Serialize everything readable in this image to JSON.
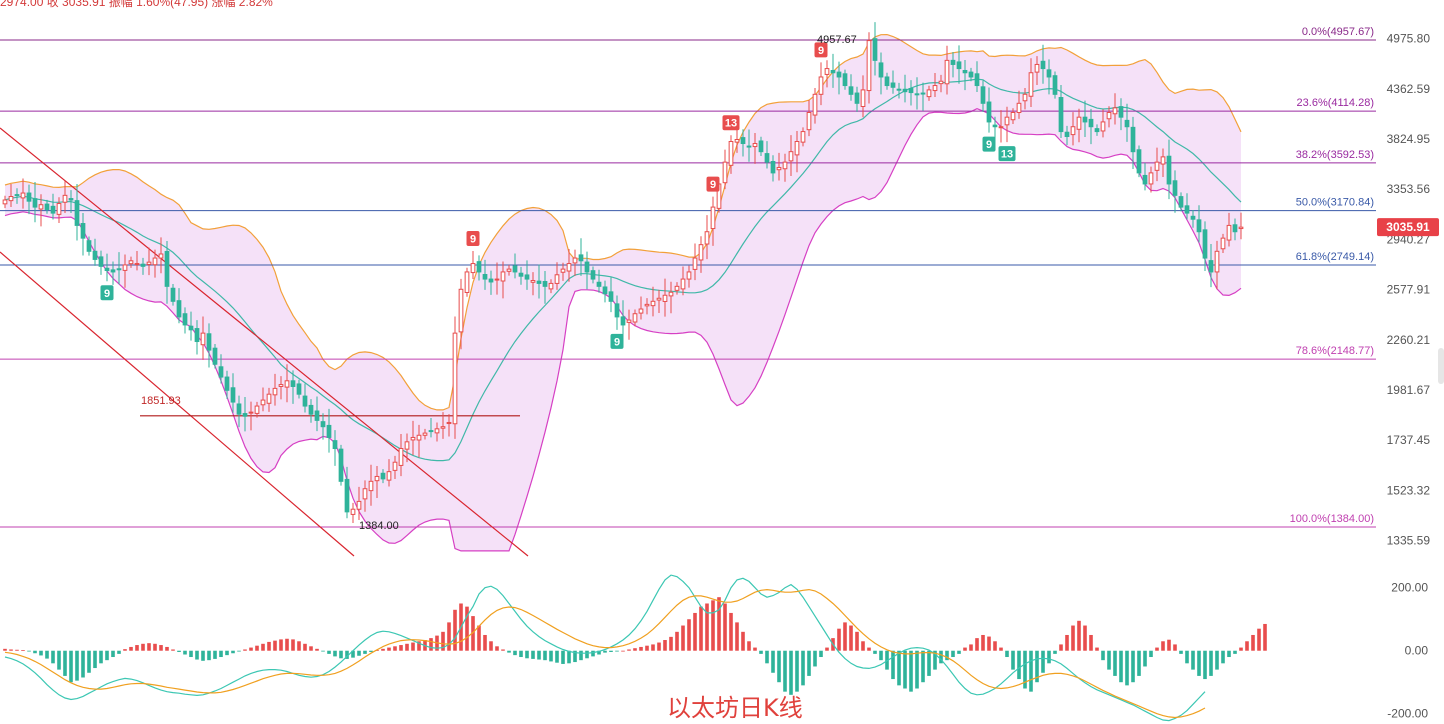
{
  "top_info": "2974.00  收 3035.91  振幅 1.60%(47.95)  涨幅 2.82%",
  "caption": "以太坊日K线",
  "colors": {
    "up": "#e84d4d",
    "down": "#2fb39a",
    "band_fill": "#f3dcf7",
    "upper_band": "#f2a03a",
    "lower_band": "#d640c4",
    "middle_band": "#40b8a8",
    "dif": "#3cc7b3",
    "dea": "#f0a020",
    "channel": "#d9252f",
    "price_tag": "#e84148"
  },
  "chart_data": [
    {
      "type": "candlestick",
      "ylim": [
        1300,
        5100
      ],
      "y_ticks": [
        "4975.80",
        "4362.59",
        "3824.95",
        "3353.56",
        "2940.27",
        "2577.91",
        "2260.21",
        "1981.67",
        "1737.45",
        "1523.32",
        "1335.59"
      ],
      "last_price": "3035.91",
      "fib_levels": [
        {
          "label": "0.0%(4957.67)",
          "value": 4957.67,
          "color": "#8a2a8a"
        },
        {
          "label": "23.6%(4114.28)",
          "value": 4114.28,
          "color": "#9a2aa0"
        },
        {
          "label": "38.2%(3592.53)",
          "value": 3592.53,
          "color": "#9a2aa0"
        },
        {
          "label": "50.0%(3170.84)",
          "value": 3170.84,
          "color": "#3a5aa8"
        },
        {
          "label": "61.8%(2749.14)",
          "value": 2749.14,
          "color": "#3a5aa8"
        },
        {
          "label": "78.6%(2148.77)",
          "value": 2148.77,
          "color": "#c040b0"
        },
        {
          "label": "100.0%(1384.00)",
          "value": 1384.0,
          "color": "#c040b0"
        }
      ],
      "annotations": {
        "high": "4957.67",
        "low": "1384.00",
        "support": "1851.93"
      },
      "count_markers": [
        {
          "text": "9",
          "kind": "down",
          "i": 17
        },
        {
          "text": "9",
          "kind": "up",
          "i": 78
        },
        {
          "text": "9",
          "kind": "down",
          "i": 102
        },
        {
          "text": "9",
          "kind": "up",
          "i": 118
        },
        {
          "text": "13",
          "kind": "up",
          "i": 121
        },
        {
          "text": "9",
          "kind": "up",
          "i": 136
        },
        {
          "text": "9",
          "kind": "down",
          "i": 164
        },
        {
          "text": "13",
          "kind": "down",
          "i": 167
        }
      ],
      "closes": [
        3260,
        3290,
        3300,
        3320,
        3250,
        3200,
        3220,
        3180,
        3150,
        3230,
        3300,
        3260,
        3050,
        2950,
        2850,
        2790,
        2740,
        2710,
        2700,
        2720,
        2750,
        2780,
        2760,
        2740,
        2770,
        2800,
        2830,
        2600,
        2500,
        2400,
        2350,
        2320,
        2250,
        2300,
        2200,
        2120,
        2050,
        1980,
        1920,
        1860,
        1850,
        1870,
        1900,
        1930,
        1960,
        1990,
        2010,
        2030,
        2000,
        1960,
        1900,
        1860,
        1830,
        1800,
        1750,
        1700,
        1560,
        1440,
        1450,
        1480,
        1530,
        1560,
        1580,
        1570,
        1600,
        1640,
        1700,
        1730,
        1750,
        1760,
        1770,
        1780,
        1790,
        1800,
        1820,
        2300,
        2580,
        2700,
        2760,
        2700,
        2650,
        2630,
        2650,
        2700,
        2720,
        2700,
        2670,
        2650,
        2640,
        2620,
        2600,
        2620,
        2680,
        2720,
        2760,
        2800,
        2780,
        2700,
        2650,
        2600,
        2550,
        2500,
        2400,
        2350,
        2380,
        2420,
        2450,
        2480,
        2500,
        2520,
        2540,
        2560,
        2600,
        2650,
        2700,
        2800,
        2900,
        3000,
        3200,
        3400,
        3600,
        3800,
        3820,
        3780,
        3750,
        3780,
        3700,
        3600,
        3500,
        3550,
        3600,
        3700,
        3800,
        3900,
        4100,
        4300,
        4500,
        4600,
        4550,
        4500,
        4400,
        4300,
        4200,
        4350,
        4950,
        4700,
        4500,
        4400,
        4380,
        4350,
        4330,
        4320,
        4300,
        4310,
        4350,
        4400,
        4450,
        4700,
        4650,
        4600,
        4550,
        4500,
        4400,
        4200,
        4000,
        3950,
        3950,
        4050,
        4100,
        4200,
        4300,
        4550,
        4650,
        4600,
        4500,
        4300,
        3900,
        3850,
        3950,
        4050,
        4000,
        3950,
        3900,
        4000,
        4100,
        4150,
        4050,
        3950,
        3700,
        3500,
        3400,
        3500,
        3600,
        3650,
        3400,
        3300,
        3200,
        3150,
        3100,
        3000,
        2800,
        2700,
        2850,
        2950,
        3050,
        3000,
        3036
      ]
    },
    {
      "type": "bar",
      "ylim": [
        -220,
        250
      ],
      "y_ticks": [
        "200.00",
        "0.00",
        "-200.00"
      ],
      "histogram": [
        6,
        4,
        3,
        2,
        -2,
        -8,
        -15,
        -25,
        -40,
        -60,
        -80,
        -100,
        -95,
        -85,
        -70,
        -55,
        -40,
        -30,
        -20,
        -10,
        5,
        12,
        18,
        22,
        24,
        22,
        18,
        12,
        4,
        -4,
        -12,
        -20,
        -28,
        -32,
        -30,
        -26,
        -20,
        -14,
        -8,
        -2,
        4,
        10,
        16,
        22,
        28,
        32,
        36,
        38,
        36,
        30,
        22,
        14,
        6,
        -2,
        -10,
        -18,
        -24,
        -26,
        -22,
        -16,
        -10,
        -4,
        2,
        6,
        10,
        14,
        18,
        22,
        26,
        30,
        34,
        40,
        48,
        60,
        90,
        130,
        150,
        140,
        110,
        80,
        50,
        30,
        14,
        4,
        -6,
        -14,
        -20,
        -24,
        -26,
        -28,
        -30,
        -34,
        -38,
        -42,
        -40,
        -36,
        -30,
        -24,
        -18,
        -12,
        -6,
        -4,
        -2,
        0,
        4,
        8,
        12,
        16,
        20,
        26,
        34,
        44,
        60,
        80,
        100,
        120,
        140,
        150,
        160,
        170,
        150,
        120,
        90,
        60,
        30,
        10,
        -10,
        -40,
        -70,
        -100,
        -130,
        -140,
        -130,
        -110,
        -80,
        -50,
        -20,
        10,
        40,
        70,
        90,
        80,
        60,
        30,
        10,
        -10,
        -30,
        -60,
        -90,
        -110,
        -120,
        -130,
        -120,
        -100,
        -80,
        -60,
        -40,
        -30,
        -20,
        -10,
        10,
        20,
        40,
        50,
        45,
        30,
        10,
        -20,
        -60,
        -90,
        -120,
        -130,
        -100,
        -70,
        -40,
        -10,
        20,
        50,
        80,
        95,
        80,
        50,
        10,
        -30,
        -60,
        -80,
        -100,
        -110,
        -100,
        -80,
        -50,
        -20,
        10,
        30,
        35,
        20,
        -10,
        -40,
        -60,
        -80,
        -90,
        -80,
        -60,
        -40,
        -20,
        -10,
        10,
        30,
        50,
        70,
        85
      ],
      "dif": [
        -20,
        -25,
        -32,
        -42,
        -55,
        -70,
        -88,
        -108,
        -125,
        -140,
        -150,
        -155,
        -152,
        -145,
        -135,
        -125,
        -115,
        -105,
        -98,
        -92,
        -88,
        -90,
        -95,
        -102,
        -110,
        -118,
        -125,
        -130,
        -133,
        -135,
        -138,
        -140,
        -142,
        -140,
        -135,
        -128,
        -120,
        -110,
        -100,
        -90,
        -80,
        -72,
        -66,
        -62,
        -60,
        -60,
        -62,
        -66,
        -72,
        -78,
        -82,
        -84,
        -82,
        -76,
        -66,
        -52,
        -36,
        -18,
        0,
        18,
        34,
        48,
        58,
        62,
        60,
        55,
        48,
        40,
        32,
        24,
        16,
        10,
        8,
        10,
        20,
        40,
        75,
        110,
        140,
        180,
        200,
        205,
        195,
        175,
        150,
        125,
        100,
        78,
        60,
        45,
        32,
        22,
        12,
        4,
        -2,
        -6,
        -8,
        -8,
        -6,
        -2,
        4,
        12,
        22,
        34,
        50,
        70,
        95,
        125,
        160,
        195,
        225,
        240,
        235,
        220,
        200,
        170,
        140,
        120,
        120,
        130,
        160,
        200,
        225,
        230,
        220,
        200,
        180,
        170,
        175,
        185,
        200,
        210,
        195,
        170,
        140,
        110,
        80,
        50,
        20,
        -5,
        -25,
        -40,
        -50,
        -55,
        -56,
        -52,
        -44,
        -32,
        -20,
        -8,
        2,
        8,
        10,
        8,
        2,
        -10,
        -28,
        -50,
        -75,
        -100,
        -120,
        -135,
        -140,
        -138,
        -130,
        -120,
        -105,
        -88,
        -70,
        -55,
        -42,
        -32,
        -26,
        -24,
        -26,
        -32,
        -42,
        -56,
        -72,
        -88,
        -102,
        -114,
        -124,
        -132,
        -140,
        -148,
        -156,
        -164,
        -172,
        -182,
        -192,
        -202,
        -212,
        -220,
        -222,
        -215,
        -205,
        -190,
        -170,
        -150,
        -130
      ],
      "dea": [
        -5,
        -8,
        -12,
        -18,
        -25,
        -34,
        -44,
        -56,
        -68,
        -80,
        -92,
        -102,
        -110,
        -116,
        -120,
        -122,
        -122,
        -120,
        -116,
        -112,
        -108,
        -105,
        -104,
        -104,
        -106,
        -109,
        -112,
        -116,
        -119,
        -122,
        -125,
        -128,
        -131,
        -133,
        -134,
        -134,
        -132,
        -128,
        -123,
        -117,
        -110,
        -103,
        -96,
        -89,
        -83,
        -78,
        -74,
        -72,
        -72,
        -73,
        -75,
        -77,
        -78,
        -78,
        -76,
        -72,
        -65,
        -56,
        -45,
        -33,
        -20,
        -8,
        3,
        13,
        21,
        27,
        32,
        34,
        35,
        34,
        32,
        29,
        25,
        22,
        21,
        23,
        30,
        42,
        58,
        78,
        98,
        115,
        128,
        136,
        139,
        137,
        131,
        122,
        112,
        101,
        90,
        79,
        68,
        58,
        48,
        38,
        30,
        22,
        16,
        12,
        10,
        10,
        12,
        16,
        22,
        30,
        40,
        52,
        68,
        86,
        106,
        126,
        145,
        160,
        170,
        174,
        174,
        170,
        164,
        158,
        154,
        154,
        158,
        166,
        176,
        186,
        192,
        194,
        192,
        188,
        186,
        186,
        188,
        192,
        194,
        190,
        180,
        166,
        150,
        132,
        112,
        92,
        72,
        54,
        38,
        24,
        12,
        3,
        -4,
        -8,
        -10,
        -10,
        -8,
        -6,
        -6,
        -8,
        -13,
        -21,
        -32,
        -46,
        -62,
        -78,
        -92,
        -104,
        -113,
        -118,
        -120,
        -118,
        -114,
        -108,
        -100,
        -92,
        -85,
        -78,
        -74,
        -72,
        -72,
        -75,
        -80,
        -87,
        -96,
        -106,
        -116,
        -126,
        -135,
        -144,
        -152,
        -160,
        -168,
        -176,
        -184,
        -192,
        -200,
        -206,
        -210,
        -212,
        -210,
        -206,
        -200,
        -192,
        -182
      ]
    }
  ]
}
